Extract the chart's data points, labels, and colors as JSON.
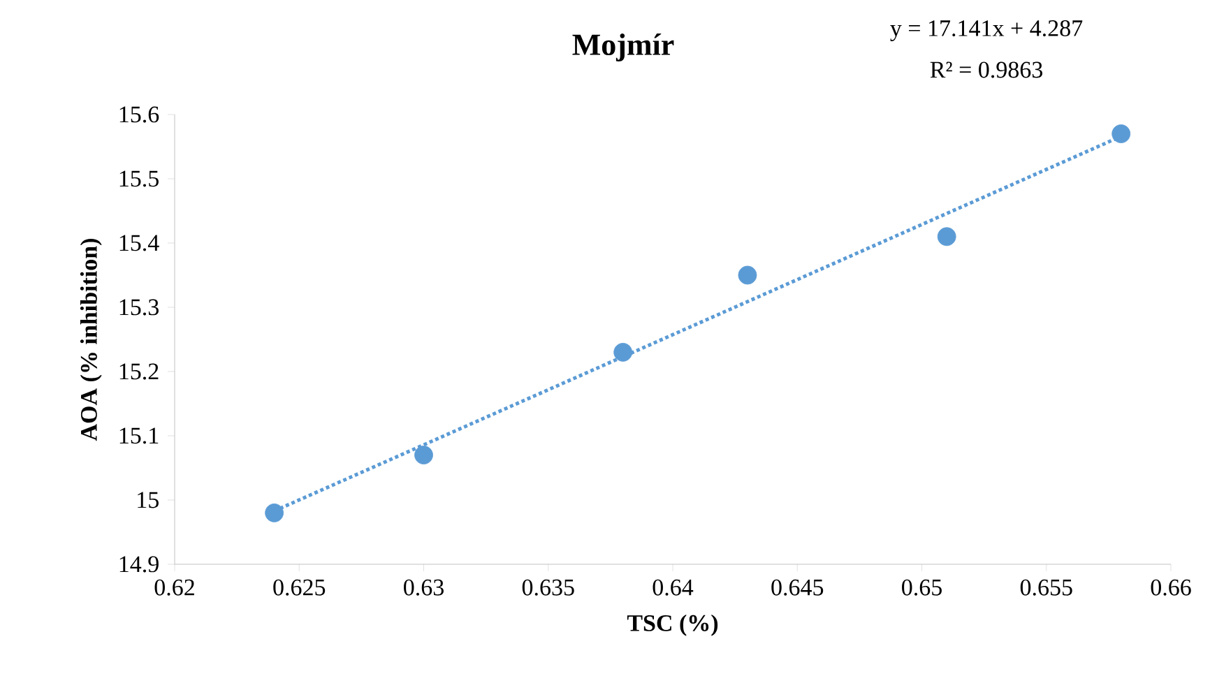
{
  "chart_data": {
    "type": "scatter",
    "title": "Mojmír",
    "xlabel": "TSC (%)",
    "ylabel": "AOA (% inhibition)",
    "annotations": [
      "y = 17.141x + 4.287",
      "R² = 0.9863"
    ],
    "series": [
      {
        "color": "#5b9bd5",
        "marker": "circle",
        "x": [
          0.624,
          0.63,
          0.638,
          0.643,
          0.651,
          0.658
        ],
        "values": [
          14.98,
          15.07,
          15.23,
          15.35,
          15.41,
          15.57
        ]
      },
      {
        "type": "line",
        "color": "#5b9bd5",
        "marker": "none",
        "line_style": "dotted",
        "x": [
          0.624,
          0.658
        ],
        "values": [
          14.983,
          15.566
        ]
      }
    ],
    "xlim": [
      0.62,
      0.66
    ],
    "xticks": [
      0.62,
      0.625,
      0.63,
      0.635,
      0.64,
      0.645,
      0.65,
      0.655,
      0.66
    ],
    "ylim": [
      14.9,
      15.6
    ],
    "yticks": [
      14.9,
      15,
      15.1,
      15.2,
      15.3,
      15.4,
      15.5,
      15.6
    ],
    "grid": false
  }
}
